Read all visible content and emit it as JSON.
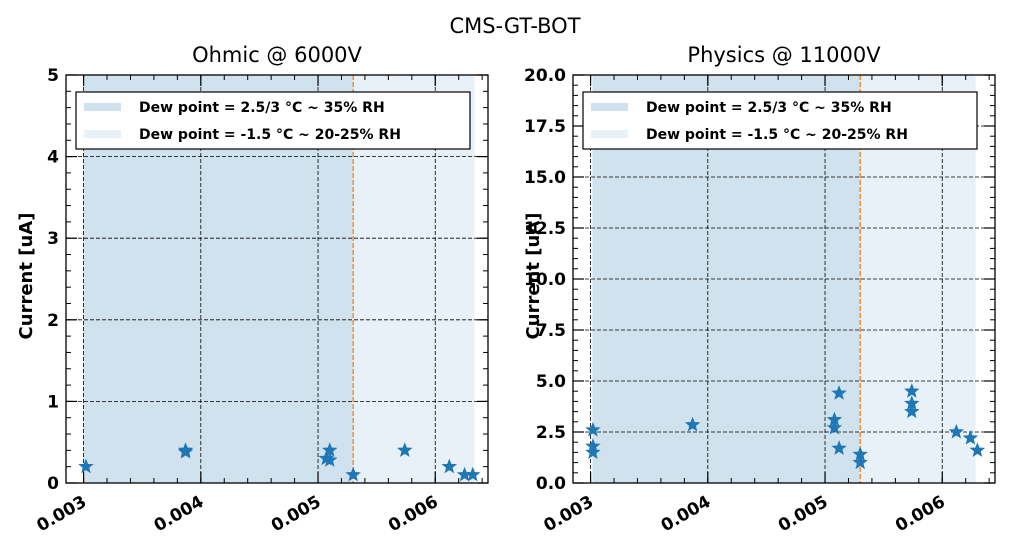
{
  "figure": {
    "title": "CMS-GT-BOT"
  },
  "colors": {
    "series": "#1f77b4",
    "band_high": "#d0e2ee",
    "band_low": "#e8f0f8",
    "divider": "#ff7f0e"
  },
  "legend": {
    "placement": "top-left",
    "entries": [
      "Dew point = 2.5/3 °C ~ 35% RH",
      "Dew point = -1.5 °C ~ 20-25% RH"
    ]
  },
  "chart_data": [
    {
      "type": "scatter",
      "title": "Ohmic @ 6000V",
      "xlabel": "",
      "ylabel": "Current [uA]",
      "xlim": [
        0.00285,
        0.00645
      ],
      "ylim": [
        0,
        5
      ],
      "grid": true,
      "marker": "star",
      "x_ticks": [
        "0.003",
        "0.004",
        "0.005",
        "0.006"
      ],
      "y_ticks": [
        "0",
        "1",
        "2",
        "3",
        "4",
        "5"
      ],
      "bands": [
        {
          "legend_index": 0,
          "x_range": [
            0.003,
            0.0053
          ],
          "color": "band_high"
        },
        {
          "legend_index": 1,
          "x_range": [
            0.0053,
            0.00633
          ],
          "color": "band_low"
        }
      ],
      "divider_x": 0.0053,
      "points": [
        {
          "x": 0.00302,
          "y": 0.2
        },
        {
          "x": 0.00387,
          "y": 0.4
        },
        {
          "x": 0.00387,
          "y": 0.38
        },
        {
          "x": 0.00507,
          "y": 0.3
        },
        {
          "x": 0.0051,
          "y": 0.4
        },
        {
          "x": 0.0051,
          "y": 0.28
        },
        {
          "x": 0.0053,
          "y": 0.1
        },
        {
          "x": 0.00574,
          "y": 0.4
        },
        {
          "x": 0.00612,
          "y": 0.2
        },
        {
          "x": 0.00625,
          "y": 0.1
        },
        {
          "x": 0.00632,
          "y": 0.1
        }
      ]
    },
    {
      "type": "scatter",
      "title": "Physics @ 11000V",
      "xlabel": "",
      "ylabel": "Current [uA]",
      "xlim": [
        0.00285,
        0.00645
      ],
      "ylim": [
        0,
        20
      ],
      "grid": true,
      "marker": "star",
      "x_ticks": [
        "0.003",
        "0.004",
        "0.005",
        "0.006"
      ],
      "y_ticks": [
        "0.0",
        "2.5",
        "5.0",
        "7.5",
        "10.0",
        "12.5",
        "15.0",
        "17.5",
        "20.0"
      ],
      "bands": [
        {
          "legend_index": 0,
          "x_range": [
            0.00302,
            0.0053
          ],
          "color": "band_high"
        },
        {
          "legend_index": 1,
          "x_range": [
            0.0053,
            0.00628
          ],
          "color": "band_low"
        }
      ],
      "divider_x": 0.0053,
      "points": [
        {
          "x": 0.00302,
          "y": 2.6
        },
        {
          "x": 0.00302,
          "y": 1.8
        },
        {
          "x": 0.00302,
          "y": 1.5
        },
        {
          "x": 0.00387,
          "y": 2.85
        },
        {
          "x": 0.00508,
          "y": 3.1
        },
        {
          "x": 0.00508,
          "y": 2.7
        },
        {
          "x": 0.00512,
          "y": 4.4
        },
        {
          "x": 0.00512,
          "y": 1.7
        },
        {
          "x": 0.0053,
          "y": 1.4
        },
        {
          "x": 0.0053,
          "y": 1.0
        },
        {
          "x": 0.00574,
          "y": 4.5
        },
        {
          "x": 0.00574,
          "y": 3.9
        },
        {
          "x": 0.00574,
          "y": 3.5
        },
        {
          "x": 0.00612,
          "y": 2.5
        },
        {
          "x": 0.00624,
          "y": 2.2
        },
        {
          "x": 0.0063,
          "y": 1.6
        }
      ]
    }
  ]
}
